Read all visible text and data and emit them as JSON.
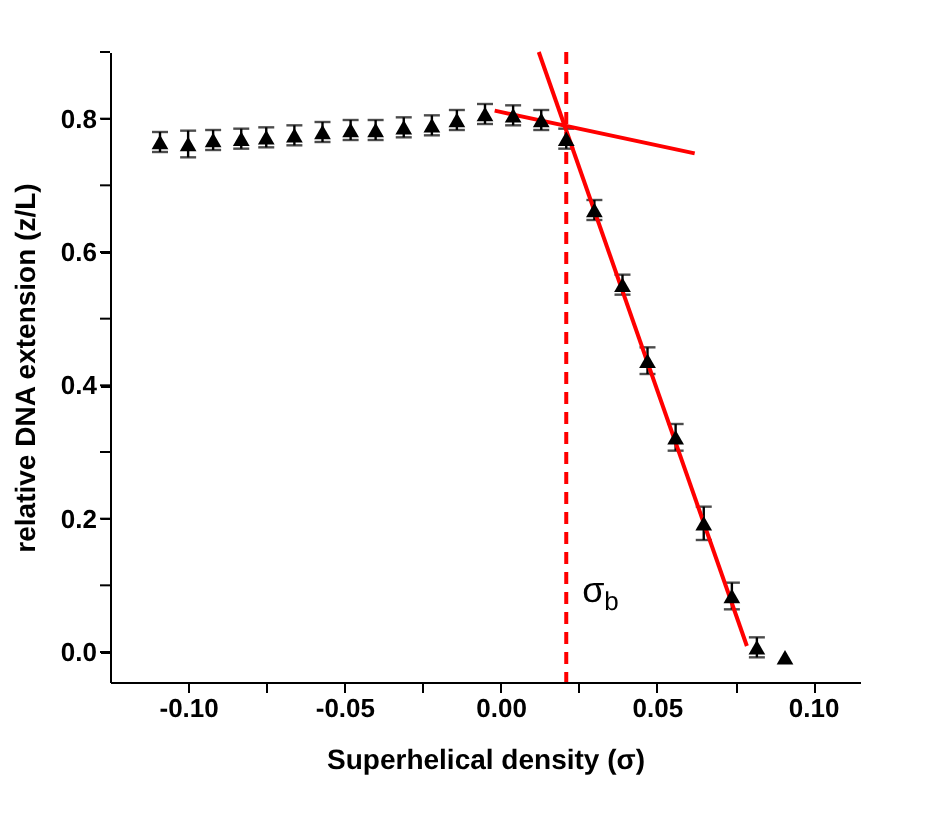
{
  "chart_data": {
    "type": "scatter",
    "xlabel": "Superhelical density (σ)",
    "ylabel": "relative DNA extension (z/L)",
    "xlim": [
      -0.125,
      0.115
    ],
    "ylim": [
      -0.045,
      0.9
    ],
    "xticks": [
      {
        "value": -0.1,
        "label": "-0.10"
      },
      {
        "value": -0.075,
        "label": null
      },
      {
        "value": -0.05,
        "label": "-0.05"
      },
      {
        "value": -0.025,
        "label": null
      },
      {
        "value": 0,
        "label": "0.00"
      },
      {
        "value": 0.025,
        "label": null
      },
      {
        "value": 0.05,
        "label": "0.05"
      },
      {
        "value": 0.075,
        "label": null
      },
      {
        "value": 0.1,
        "label": "0.10"
      }
    ],
    "yticks": [
      {
        "value": 0,
        "label": "0.0"
      },
      {
        "value": 0.1,
        "label": null
      },
      0.2,
      {
        "value": 0.3,
        "label": null
      },
      0.4,
      {
        "value": 0.5,
        "label": null
      },
      0.6,
      {
        "value": 0.7,
        "label": null
      },
      0.8,
      {
        "value": 0.9,
        "label": null
      }
    ],
    "grid": false,
    "series": [
      {
        "color": "#000000",
        "marker": "triangle",
        "x": [
          -0.109,
          -0.1,
          -0.092,
          -0.083,
          -0.075,
          -0.066,
          -0.057,
          -0.048,
          -0.04,
          -0.031,
          -0.022,
          -0.014,
          -0.005,
          0.004,
          0.013,
          0.021,
          0.03,
          0.039,
          0.047,
          0.056,
          0.065,
          0.074,
          0.082,
          0.091
        ],
        "values": [
          0.765,
          0.762,
          0.768,
          0.77,
          0.772,
          0.775,
          0.78,
          0.783,
          0.783,
          0.787,
          0.79,
          0.798,
          0.807,
          0.805,
          0.798,
          0.77,
          0.663,
          0.551,
          0.437,
          0.322,
          0.193,
          0.084,
          0.007,
          -0.008
        ],
        "errors": [
          0.015,
          0.02,
          0.015,
          0.015,
          0.015,
          0.015,
          0.015,
          0.015,
          0.015,
          0.015,
          0.015,
          0.015,
          0.015,
          0.015,
          0.015,
          0.015,
          0.015,
          0.015,
          0.02,
          0.02,
          0.025,
          0.02,
          0.015,
          null
        ]
      },
      {
        "type": "line",
        "color": "#ff0000",
        "x": [
          0.0122,
          0.0788
        ],
        "values": [
          0.9,
          0.009
        ]
      },
      {
        "type": "line",
        "color": "#ff0000",
        "x": [
          -0.0019,
          0.0621
        ],
        "values": [
          0.812,
          0.748
        ]
      }
    ],
    "ref_lines": [
      {
        "axis": "x",
        "value": 0.021,
        "label": "σ$_{b}$",
        "color": "#ff0000",
        "line_style": "dashed"
      }
    ]
  }
}
